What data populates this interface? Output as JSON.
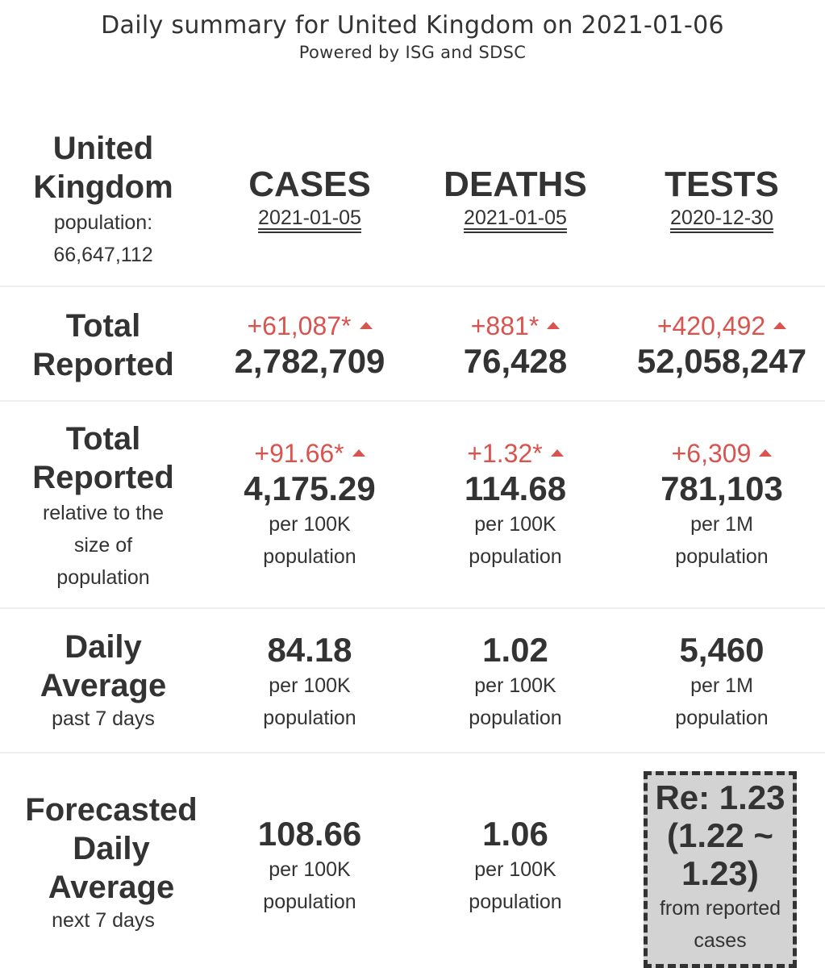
{
  "header": {
    "title": "Daily summary for United Kingdom on 2021-01-06",
    "subtitle": "Powered by ISG and SDSC"
  },
  "country": {
    "name": "United Kingdom",
    "population_label": "population:",
    "population": "66,647,112"
  },
  "columns": [
    {
      "name": "CASES",
      "date": "2021-01-05"
    },
    {
      "name": "DEATHS",
      "date": "2021-01-05"
    },
    {
      "name": "TESTS",
      "date": "2020-12-30"
    }
  ],
  "rows": {
    "total": {
      "label": "Total Reported",
      "cells": [
        {
          "delta": "+61,087*",
          "value": "2,782,709"
        },
        {
          "delta": "+881*",
          "value": "76,428"
        },
        {
          "delta": "+420,492",
          "value": "52,058,247"
        }
      ]
    },
    "relative": {
      "label": "Total Reported",
      "sublabel": "relative to the size of population",
      "cells": [
        {
          "delta": "+91.66*",
          "value": "4,175.29",
          "unit1": "per 100K",
          "unit2": "population"
        },
        {
          "delta": "+1.32*",
          "value": "114.68",
          "unit1": "per 100K",
          "unit2": "population"
        },
        {
          "delta": "+6,309",
          "value": "781,103",
          "unit1": "per 1M",
          "unit2": "population"
        }
      ]
    },
    "daily": {
      "label": "Daily Average",
      "sublabel": "past 7 days",
      "cells": [
        {
          "value": "84.18",
          "unit1": "per 100K",
          "unit2": "population"
        },
        {
          "value": "1.02",
          "unit1": "per 100K",
          "unit2": "population"
        },
        {
          "value": "5,460",
          "unit1": "per 1M",
          "unit2": "population"
        }
      ]
    },
    "forecast": {
      "label": "Forecasted Daily Average",
      "sublabel": "next 7 days",
      "cells": [
        {
          "value": "108.66",
          "unit1": "per 100K",
          "unit2": "population"
        },
        {
          "value": "1.06",
          "unit1": "per 100K",
          "unit2": "population"
        }
      ],
      "re": {
        "value": "Re: 1.23",
        "range": "(1.22 ~ 1.23)",
        "note": "from reported cases"
      }
    }
  },
  "colors": {
    "increase": "#d9534f",
    "text": "#333333",
    "separator": "#eeeeee",
    "re_box": "#d3d3d3"
  }
}
